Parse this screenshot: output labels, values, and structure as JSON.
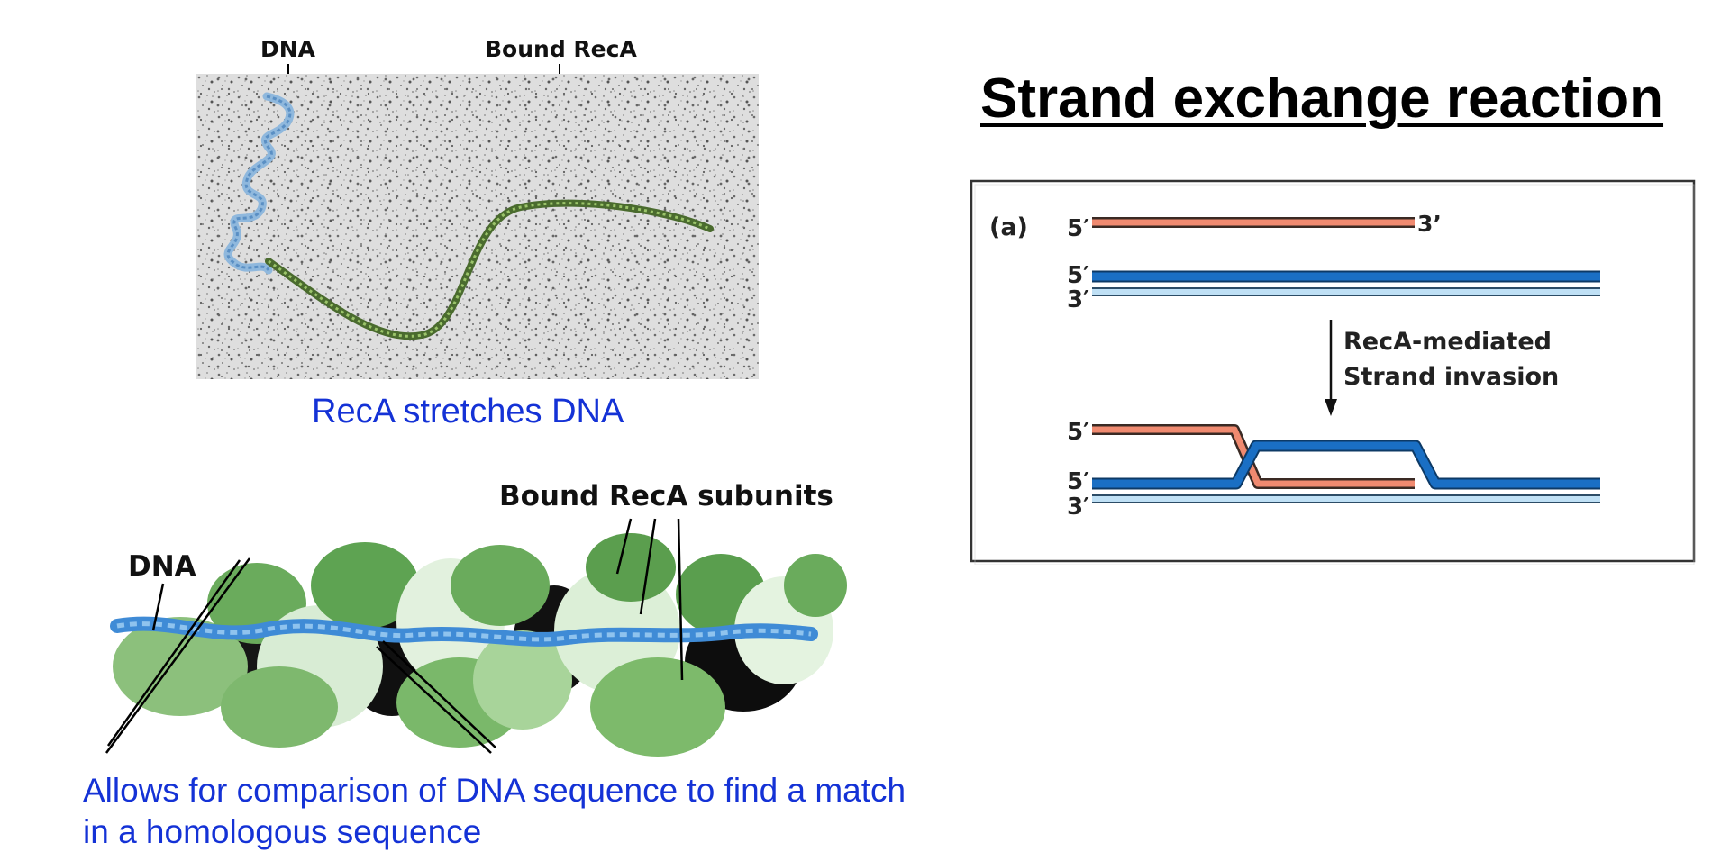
{
  "title": "Strand exchange reaction",
  "micrograph": {
    "label_dna": "DNA",
    "label_bound_reca": "Bound RecA",
    "caption": "RecA stretches DNA"
  },
  "filament_model": {
    "label_dna": "DNA",
    "label_subunits": "Bound RecA subunits",
    "caption_line1": "Allows for comparison of DNA sequence to find a match",
    "caption_line2": "in a homologous sequence"
  },
  "strand_panel": {
    "panel_label": "(a)",
    "single_strand_5": "5′",
    "single_strand_3": "3’",
    "duplex_top_5": "5′",
    "duplex_bottom_3": "3′",
    "arrow_label_line1": "RecA-mediated",
    "arrow_label_line2": "Strand invasion",
    "product_invading_5": "5′",
    "product_top_5": "5′",
    "product_bottom_3": "3′"
  },
  "colors": {
    "caption_blue": "#1432d6",
    "ssdna_salmon": "#f08a70",
    "dna_blue": "#1a6fc4",
    "dna_light_blue": "#bfe0f5",
    "reca_green": "#5a9a4c"
  }
}
